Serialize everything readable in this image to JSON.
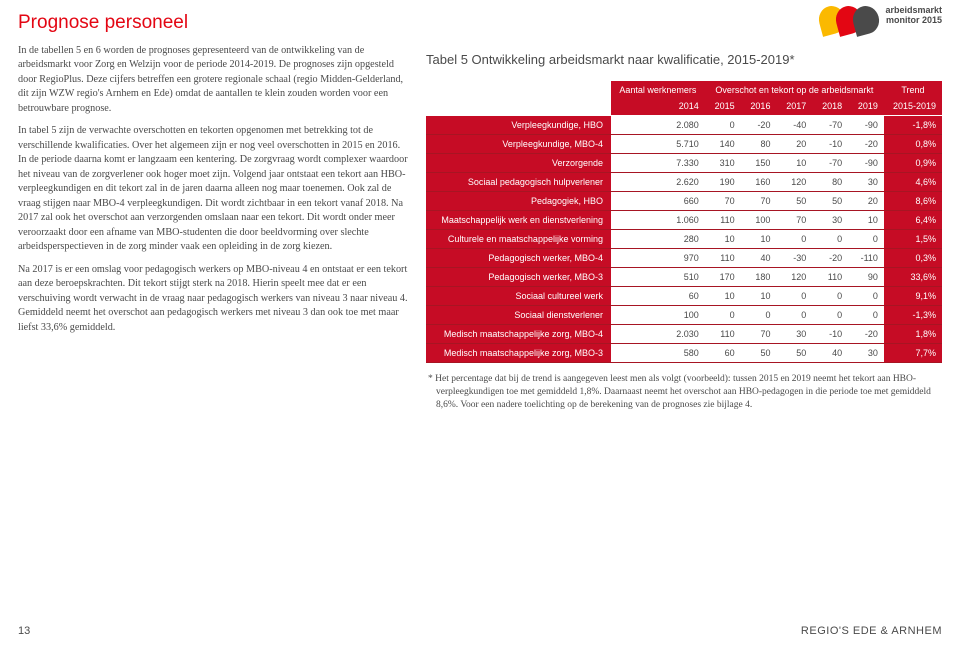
{
  "title": "Prognose personeel",
  "paragraphs": [
    "In de tabellen 5 en 6 worden de prognoses gepresenteerd van de ontwikkeling van de arbeidsmarkt voor Zorg en Welzijn voor de periode 2014-2019. De prognoses zijn opgesteld door RegioPlus. Deze cijfers betreffen een grotere regionale schaal (regio Midden-Gelderland, dit zijn WZW regio's Arnhem en Ede) omdat de aantallen te klein zouden worden voor een betrouwbare prognose.",
    "In tabel 5 zijn de verwachte overschotten en tekorten opgenomen met betrekking tot de verschillende kwalificaties.\nOver het algemeen zijn er nog veel overschotten in 2015 en 2016. In de periode daarna komt er langzaam een kentering. De zorgvraag wordt complexer waardoor het niveau van de zorgverlener ook hoger moet zijn. Volgend jaar ontstaat een tekort aan HBO-verpleegkundigen en dit tekort zal in de jaren daarna alleen nog maar toenemen. Ook zal de vraag stijgen naar MBO-4 verpleegkundigen. Dit wordt zichtbaar in een tekort vanaf 2018.\nNa 2017 zal ook het overschot aan verzorgenden omslaan naar een tekort. Dit wordt onder meer veroorzaakt door een afname van MBO-studenten die door beeldvorming over slechte arbeidsperspectieven in de zorg minder vaak een opleiding in de zorg kiezen.",
    "Na 2017 is er een omslag voor pedagogisch werkers op MBO-niveau 4 en ontstaat er een tekort aan deze beroepskrachten. Dit tekort stijgt sterk na 2018. Hierin speelt mee dat er een verschuiving wordt verwacht in de vraag naar pedagogisch werkers van niveau 3 naar niveau 4. Gemiddeld neemt het overschot aan pedagogisch werkers met niveau 3 dan ook toe met maar liefst 33,6% gemiddeld."
  ],
  "logo": {
    "colors": [
      "#fbb900",
      "#e30613",
      "#4a4a4a"
    ],
    "line1": "arbeidsmarkt",
    "line2": "monitor 2015"
  },
  "table": {
    "title": "Tabel 5 Ontwikkeling arbeidsmarkt naar kwalificatie, 2015-2019*",
    "header_group": {
      "col_aantal": "Aantal werknemers",
      "col_overschot": "Overschot en tekort op de arbeidsmarkt",
      "col_trend": "Trend"
    },
    "years": [
      "2014",
      "2015",
      "2016",
      "2017",
      "2018",
      "2019",
      "2015-2019"
    ],
    "rows": [
      {
        "label": "Verpleegkundige, HBO",
        "vals": [
          "2.080",
          "0",
          "-20",
          "-40",
          "-70",
          "-90"
        ],
        "trend": "-1,8%"
      },
      {
        "label": "Verpleegkundige, MBO-4",
        "vals": [
          "5.710",
          "140",
          "80",
          "20",
          "-10",
          "-20"
        ],
        "trend": "0,8%"
      },
      {
        "label": "Verzorgende",
        "vals": [
          "7.330",
          "310",
          "150",
          "10",
          "-70",
          "-90"
        ],
        "trend": "0,9%"
      },
      {
        "label": "Sociaal pedagogisch hulpverlener",
        "vals": [
          "2.620",
          "190",
          "160",
          "120",
          "80",
          "30"
        ],
        "trend": "4,6%"
      },
      {
        "label": "Pedagogiek, HBO",
        "vals": [
          "660",
          "70",
          "70",
          "50",
          "50",
          "20"
        ],
        "trend": "8,6%"
      },
      {
        "label": "Maatschappelijk werk en dienstverlening",
        "vals": [
          "1.060",
          "110",
          "100",
          "70",
          "30",
          "10"
        ],
        "trend": "6,4%"
      },
      {
        "label": "Culturele en maatschappelijke vorming",
        "vals": [
          "280",
          "10",
          "10",
          "0",
          "0",
          "0"
        ],
        "trend": "1,5%"
      },
      {
        "label": "Pedagogisch werker, MBO-4",
        "vals": [
          "970",
          "110",
          "40",
          "-30",
          "-20",
          "-110"
        ],
        "trend": "0,3%"
      },
      {
        "label": "Pedagogisch werker, MBO-3",
        "vals": [
          "510",
          "170",
          "180",
          "120",
          "110",
          "90"
        ],
        "trend": "33,6%"
      },
      {
        "label": "Sociaal cultureel werk",
        "vals": [
          "60",
          "10",
          "10",
          "0",
          "0",
          "0"
        ],
        "trend": "9,1%"
      },
      {
        "label": "Sociaal dienstverlener",
        "vals": [
          "100",
          "0",
          "0",
          "0",
          "0",
          "0"
        ],
        "trend": "-1,3%"
      },
      {
        "label": "Medisch maatschappelijke zorg, MBO-4",
        "vals": [
          "2.030",
          "110",
          "70",
          "30",
          "-10",
          "-20"
        ],
        "trend": "1,8%"
      },
      {
        "label": "Medisch maatschappelijke zorg, MBO-3",
        "vals": [
          "580",
          "60",
          "50",
          "50",
          "40",
          "30"
        ],
        "trend": "7,7%"
      }
    ],
    "header_bg": "#c60c25",
    "header_fg": "#ffffff",
    "cell_bg": "#ffffff",
    "cell_fg": "#4a4a4a",
    "border_color": "#a71523"
  },
  "footnote": "* Het percentage dat bij de trend is aangegeven leest men als volgt (voorbeeld): tussen 2015 en 2019 neemt het tekort aan HBO-verpleegkundigen toe met gemiddeld 1,8%. Daarnaast neemt het overschot aan HBO-pedagogen in die periode toe met gemiddeld 8,6%. Voor een nadere toelichting op de berekening van de prognoses zie bijlage 4.",
  "footer": {
    "page": "13",
    "region": "REGIO'S EDE & ARNHEM"
  }
}
